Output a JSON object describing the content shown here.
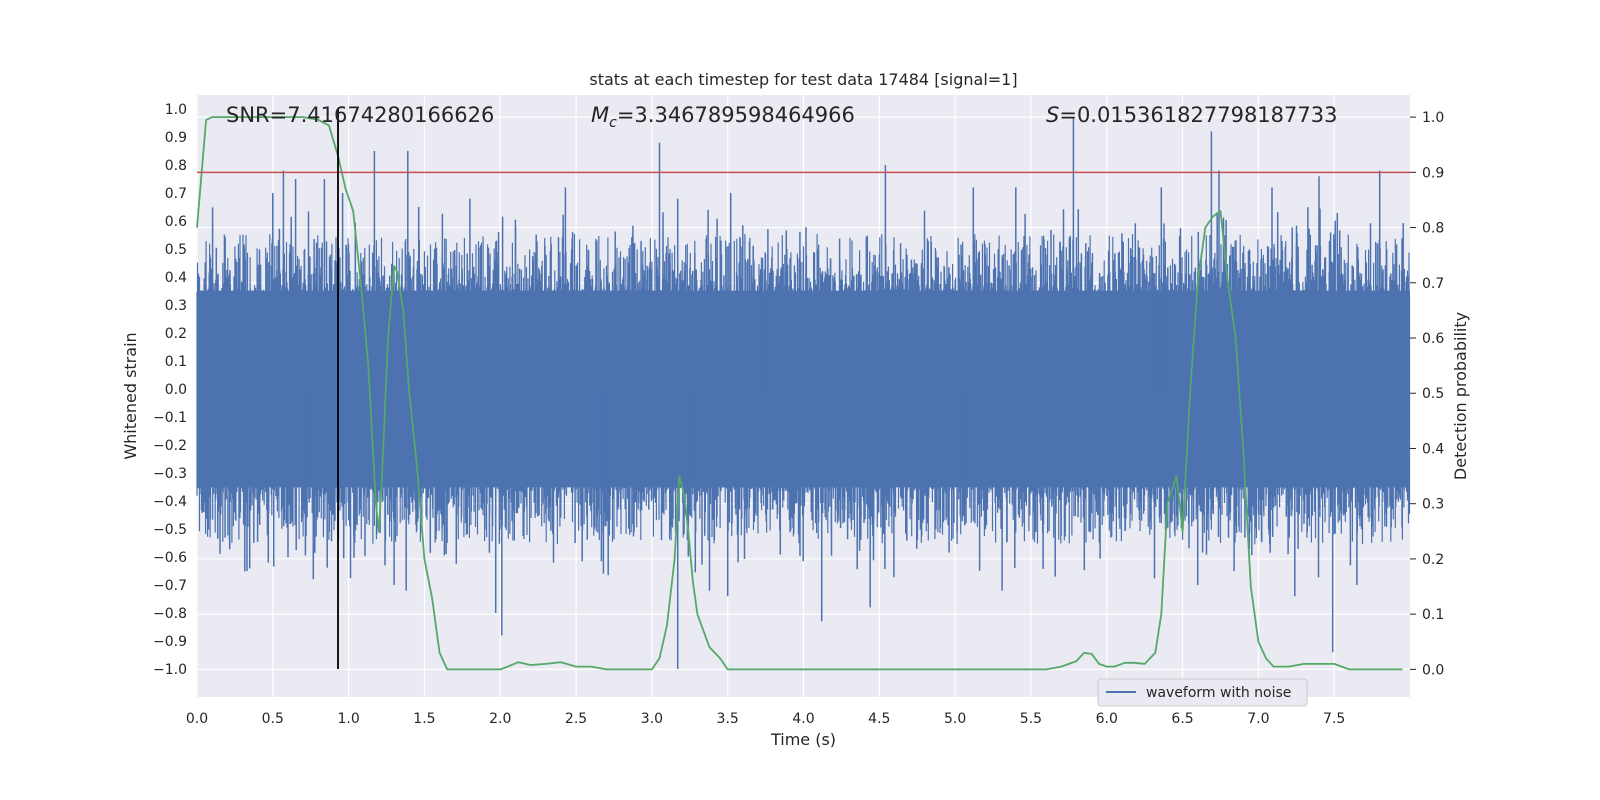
{
  "chart_data": {
    "type": "line",
    "title": "stats at each timestep for test data 17484 [signal=1]",
    "xlabel": "Time (s)",
    "ylabel": "Whitened strain",
    "y2label": "Detection probability",
    "xlim": [
      0,
      8
    ],
    "ylim": [
      -1.1,
      1.05
    ],
    "y2lim": [
      -0.05,
      1.04
    ],
    "xticks": [
      0.0,
      0.5,
      1.0,
      1.5,
      2.0,
      2.5,
      3.0,
      3.5,
      4.0,
      4.5,
      5.0,
      5.5,
      6.0,
      6.5,
      7.0,
      7.5
    ],
    "xtick_labels": [
      "0.0",
      "0.5",
      "1.0",
      "1.5",
      "2.0",
      "2.5",
      "3.0",
      "3.5",
      "4.0",
      "4.5",
      "5.0",
      "5.5",
      "6.0",
      "6.5",
      "7.0",
      "7.5"
    ],
    "yticks": [
      1.0,
      0.9,
      0.8,
      0.7,
      0.6,
      0.5,
      0.4,
      0.3,
      0.2,
      0.1,
      0.0,
      -0.1,
      -0.2,
      -0.3,
      -0.4,
      -0.5,
      -0.6,
      -0.7,
      -0.8,
      -0.9,
      -1.0
    ],
    "ytick_labels": [
      "1.0",
      "0.9",
      "0.8",
      "0.7",
      "0.6",
      "0.5",
      "0.4",
      "0.3",
      "0.2",
      "0.1",
      "0.0",
      "−0.1",
      "−0.2",
      "−0.3",
      "−0.4",
      "−0.5",
      "−0.6",
      "−0.7",
      "−0.8",
      "−0.9",
      "−1.0"
    ],
    "y2ticks": [
      1.0,
      0.9,
      0.8,
      0.7,
      0.6,
      0.5,
      0.4,
      0.3,
      0.2,
      0.1,
      0.0
    ],
    "y2tick_labels": [
      "1.0",
      "0.9",
      "0.8",
      "0.7",
      "0.6",
      "0.5",
      "0.4",
      "0.3",
      "0.2",
      "0.1",
      "0.0"
    ],
    "grid": true,
    "annotations": {
      "snr": "SNR=7.41674280166626",
      "mc_symbol": "M",
      "mc_sub": "c",
      "mc_value": "=3.346789598464966",
      "s_symbol": "S",
      "s_value": "=0.015361827798187733"
    },
    "legend": {
      "placement": "lower-right",
      "entries": [
        "waveform with noise"
      ]
    },
    "vertical_line_x": 0.93,
    "threshold_y2": 0.9,
    "series": [
      {
        "name": "waveform with noise",
        "axis": "left",
        "style": "noise",
        "core_amplitude": 0.37,
        "peaks_pos": [
          [
            0.5,
            0.7
          ],
          [
            0.57,
            0.78
          ],
          [
            0.65,
            0.75
          ],
          [
            0.84,
            0.75
          ],
          [
            0.96,
            0.7
          ],
          [
            1.17,
            0.85
          ],
          [
            1.39,
            0.85
          ],
          [
            1.8,
            0.68
          ],
          [
            2.43,
            0.72
          ],
          [
            3.05,
            0.88
          ],
          [
            3.17,
            0.68
          ],
          [
            3.52,
            0.7
          ],
          [
            4.54,
            0.8
          ],
          [
            5.12,
            0.72
          ],
          [
            5.4,
            0.72
          ],
          [
            5.78,
            0.97
          ],
          [
            6.36,
            0.72
          ],
          [
            6.69,
            0.92
          ],
          [
            6.74,
            0.78
          ],
          [
            7.09,
            0.72
          ],
          [
            7.4,
            0.76
          ],
          [
            7.8,
            0.78
          ]
        ],
        "peaks_neg": [
          [
            0.33,
            -0.65
          ],
          [
            0.47,
            -0.62
          ],
          [
            0.6,
            -0.6
          ],
          [
            1.04,
            -0.55
          ],
          [
            1.24,
            -0.63
          ],
          [
            1.3,
            -0.7
          ],
          [
            1.38,
            -0.72
          ],
          [
            1.97,
            -0.8
          ],
          [
            2.01,
            -0.88
          ],
          [
            2.68,
            -0.66
          ],
          [
            3.17,
            -1.0
          ],
          [
            3.38,
            -0.72
          ],
          [
            3.5,
            -0.74
          ],
          [
            4.12,
            -0.83
          ],
          [
            4.44,
            -0.78
          ],
          [
            5.31,
            -0.72
          ],
          [
            5.66,
            -0.67
          ],
          [
            6.6,
            -0.7
          ],
          [
            6.84,
            -0.65
          ],
          [
            7.24,
            -0.74
          ],
          [
            7.49,
            -0.94
          ],
          [
            7.65,
            -0.7
          ]
        ]
      },
      {
        "name": "",
        "axis": "right",
        "color": "#55a868",
        "x": [
          0.0,
          0.06,
          0.1,
          0.15,
          0.2,
          0.3,
          0.4,
          0.5,
          0.6,
          0.7,
          0.8,
          0.87,
          0.93,
          0.98,
          1.03,
          1.08,
          1.13,
          1.18,
          1.2,
          1.22,
          1.26,
          1.3,
          1.32,
          1.36,
          1.4,
          1.45,
          1.5,
          1.55,
          1.6,
          1.65,
          1.7,
          1.8,
          2.0,
          2.05,
          2.12,
          2.2,
          2.3,
          2.4,
          2.5,
          2.6,
          2.7,
          2.8,
          2.9,
          3.0,
          3.05,
          3.1,
          3.15,
          3.18,
          3.21,
          3.24,
          3.27,
          3.3,
          3.38,
          3.45,
          3.5,
          3.6,
          3.8,
          4.0,
          4.2,
          4.4,
          4.5,
          4.6,
          4.7,
          4.9,
          5.0,
          5.2,
          5.4,
          5.6,
          5.7,
          5.8,
          5.85,
          5.9,
          5.95,
          6.0,
          6.05,
          6.12,
          6.18,
          6.25,
          6.32,
          6.36,
          6.4,
          6.46,
          6.5,
          6.55,
          6.6,
          6.65,
          6.7,
          6.75,
          6.8,
          6.85,
          6.9,
          6.95,
          7.0,
          7.05,
          7.1,
          7.2,
          7.3,
          7.4,
          7.5,
          7.6,
          7.8,
          7.95
        ],
        "y": [
          0.8,
          0.995,
          1.0,
          1.0,
          1.0,
          1.0,
          1.0,
          1.0,
          1.0,
          1.0,
          0.995,
          0.985,
          0.93,
          0.87,
          0.83,
          0.7,
          0.55,
          0.3,
          0.25,
          0.35,
          0.6,
          0.73,
          0.72,
          0.65,
          0.5,
          0.37,
          0.2,
          0.13,
          0.03,
          0.0,
          0.0,
          0.0,
          0.0,
          0.005,
          0.013,
          0.008,
          0.01,
          0.013,
          0.005,
          0.005,
          0.0,
          0.0,
          0.0,
          0.0,
          0.02,
          0.08,
          0.2,
          0.35,
          0.32,
          0.25,
          0.16,
          0.1,
          0.04,
          0.02,
          0.0,
          0.0,
          0.0,
          0.0,
          0.0,
          0.0,
          0.0,
          0.0,
          0.0,
          0.0,
          0.0,
          0.0,
          0.0,
          0.0,
          0.005,
          0.015,
          0.03,
          0.028,
          0.01,
          0.005,
          0.005,
          0.012,
          0.012,
          0.01,
          0.03,
          0.1,
          0.3,
          0.35,
          0.25,
          0.5,
          0.7,
          0.8,
          0.82,
          0.83,
          0.7,
          0.6,
          0.4,
          0.15,
          0.05,
          0.02,
          0.005,
          0.005,
          0.01,
          0.01,
          0.01,
          0.0,
          0.0,
          0.0
        ]
      }
    ]
  }
}
